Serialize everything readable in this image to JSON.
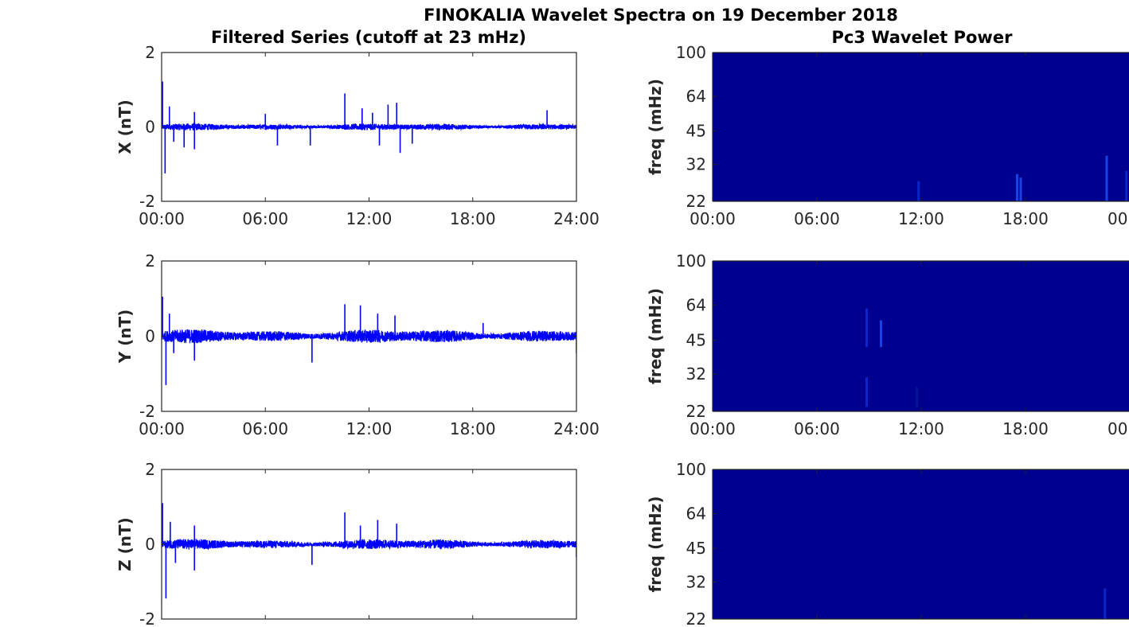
{
  "figure": {
    "title": "FINOKALIA Wavelet Spectra on 19 December 2018",
    "left_column_title": "Filtered Series (cutoff at 23 mHz)",
    "right_column_title": "Pc3 Wavelet Power"
  },
  "chart_data": [
    {
      "type": "line",
      "ylabel": "X (nT)",
      "ylim": [
        -2,
        2
      ],
      "yticks": [
        "2",
        "0",
        "-2"
      ],
      "xlim": [
        0,
        24
      ],
      "xticks": [
        "00:00",
        "06:00",
        "12:00",
        "18:00",
        "24:00"
      ],
      "line_color": "#0000ff",
      "noise_amplitude": 0.08,
      "spikes": [
        {
          "t": 0.05,
          "v": 1.22
        },
        {
          "t": 0.2,
          "v": -1.25
        },
        {
          "t": 0.45,
          "v": 0.55
        },
        {
          "t": 0.7,
          "v": -0.4
        },
        {
          "t": 1.3,
          "v": -0.55
        },
        {
          "t": 1.9,
          "v": 0.4
        },
        {
          "t": 1.9,
          "v": -0.6
        },
        {
          "t": 6.0,
          "v": 0.35
        },
        {
          "t": 6.7,
          "v": -0.5
        },
        {
          "t": 8.6,
          "v": -0.5
        },
        {
          "t": 10.6,
          "v": 0.9
        },
        {
          "t": 11.6,
          "v": 0.5
        },
        {
          "t": 12.2,
          "v": 0.38
        },
        {
          "t": 12.6,
          "v": -0.5
        },
        {
          "t": 13.1,
          "v": 0.6
        },
        {
          "t": 13.6,
          "v": 0.65
        },
        {
          "t": 13.8,
          "v": -0.7
        },
        {
          "t": 14.5,
          "v": -0.45
        },
        {
          "t": 22.3,
          "v": 0.45
        }
      ]
    },
    {
      "type": "line",
      "ylabel": "Y (nT)",
      "ylim": [
        -2,
        2
      ],
      "yticks": [
        "2",
        "0",
        "-2"
      ],
      "xlim": [
        0,
        24
      ],
      "xticks": [
        "00:00",
        "06:00",
        "12:00",
        "18:00",
        "24:00"
      ],
      "line_color": "#0000ff",
      "noise_amplitude": 0.16,
      "spikes": [
        {
          "t": 0.05,
          "v": 1.05
        },
        {
          "t": 0.25,
          "v": -1.3
        },
        {
          "t": 0.45,
          "v": 0.6
        },
        {
          "t": 0.7,
          "v": -0.45
        },
        {
          "t": 1.9,
          "v": -0.65
        },
        {
          "t": 8.7,
          "v": -0.7
        },
        {
          "t": 10.6,
          "v": 0.85
        },
        {
          "t": 11.5,
          "v": 0.82
        },
        {
          "t": 12.5,
          "v": 0.6
        },
        {
          "t": 13.5,
          "v": 0.55
        },
        {
          "t": 18.6,
          "v": 0.35
        },
        {
          "t": 24.0,
          "v": -0.45
        }
      ]
    },
    {
      "type": "line",
      "ylabel": "Z (nT)",
      "ylim": [
        -2,
        2
      ],
      "yticks": [
        "2",
        "0",
        "-2"
      ],
      "xlim": [
        0,
        24
      ],
      "xticks": [],
      "line_color": "#0000ff",
      "noise_amplitude": 0.12,
      "spikes": [
        {
          "t": 0.05,
          "v": 1.1
        },
        {
          "t": 0.25,
          "v": -1.45
        },
        {
          "t": 0.5,
          "v": 0.6
        },
        {
          "t": 0.8,
          "v": -0.5
        },
        {
          "t": 1.9,
          "v": 0.5
        },
        {
          "t": 1.9,
          "v": -0.7
        },
        {
          "t": 8.7,
          "v": -0.55
        },
        {
          "t": 10.6,
          "v": 0.85
        },
        {
          "t": 11.5,
          "v": 0.5
        },
        {
          "t": 12.5,
          "v": 0.65
        },
        {
          "t": 13.6,
          "v": 0.55
        },
        {
          "t": 24.0,
          "v": -0.35
        }
      ]
    },
    {
      "type": "heatmap",
      "ylabel": "freq (mHz)",
      "yscale": "log",
      "ylim": [
        22,
        100
      ],
      "yticks": [
        100,
        64,
        45,
        32,
        22
      ],
      "xlim": [
        0,
        24
      ],
      "xticks": [
        "00:00",
        "06:00",
        "12:00",
        "18:00",
        "00"
      ],
      "background_color": "#00008f",
      "hotspots": [
        {
          "t": 11.5,
          "f_low": 22,
          "f_high": 27,
          "color": "#0a2ad0"
        },
        {
          "t": 17.0,
          "f_low": 22,
          "f_high": 29,
          "color": "#1a4af0"
        },
        {
          "t": 17.2,
          "f_low": 22,
          "f_high": 28,
          "color": "#1a4af0"
        },
        {
          "t": 22.0,
          "f_low": 22,
          "f_high": 35,
          "color": "#1a4af0"
        },
        {
          "t": 23.1,
          "f_low": 22,
          "f_high": 30,
          "color": "#0a2ad0"
        }
      ]
    },
    {
      "type": "heatmap",
      "ylabel": "freq (mHz)",
      "yscale": "log",
      "ylim": [
        22,
        100
      ],
      "yticks": [
        100,
        64,
        45,
        32,
        22
      ],
      "xlim": [
        0,
        24
      ],
      "xticks": [
        "00:00",
        "06:00",
        "12:00",
        "18:00",
        "00"
      ],
      "background_color": "#00008f",
      "hotspots": [
        {
          "t": 8.6,
          "f_low": 42,
          "f_high": 62,
          "color": "#0a2ad0"
        },
        {
          "t": 9.4,
          "f_low": 42,
          "f_high": 55,
          "color": "#1a4af0"
        },
        {
          "t": 8.6,
          "f_low": 23,
          "f_high": 31,
          "color": "#0a2ad0"
        },
        {
          "t": 11.4,
          "f_low": 23,
          "f_high": 28,
          "color": "#05159a"
        }
      ]
    },
    {
      "type": "heatmap",
      "ylabel": "freq (mHz)",
      "yscale": "log",
      "ylim": [
        22,
        100
      ],
      "yticks": [
        100,
        64,
        45,
        32,
        22
      ],
      "xlim": [
        0,
        24
      ],
      "xticks": [],
      "background_color": "#00008f",
      "hotspots": [
        {
          "t": 21.9,
          "f_low": 22,
          "f_high": 30,
          "color": "#0a2ad0"
        }
      ]
    }
  ]
}
